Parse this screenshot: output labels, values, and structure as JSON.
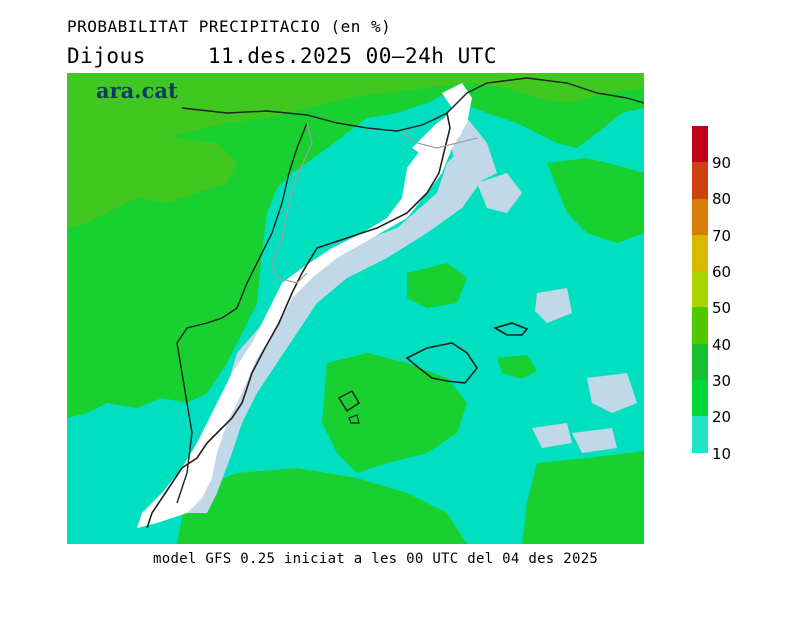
{
  "title": "PROBABILITAT PRECIPITACIO (en %)",
  "subtitle": {
    "day": "Dijous",
    "period": "11.des.2025 00—24h UTC"
  },
  "logo": "ara.cat",
  "footer": "model GFS 0.25 iniciat a les 00 UTC del 04 des 2025",
  "colorbar": {
    "labels": [
      "90",
      "80",
      "70",
      "60",
      "50",
      "40",
      "30",
      "20",
      "10"
    ],
    "colors": [
      "#c00018",
      "#d04010",
      "#d87c08",
      "#d8b800",
      "#a8d400",
      "#50c800",
      "#18c030",
      "#00d838",
      "#20e4c8"
    ]
  },
  "palette": {
    "dry": "#ffffff",
    "very_low": "#c0d8e8",
    "low": "#00e0c0",
    "mid": "#18d030",
    "high": "#40c820",
    "top": "#78d000"
  }
}
